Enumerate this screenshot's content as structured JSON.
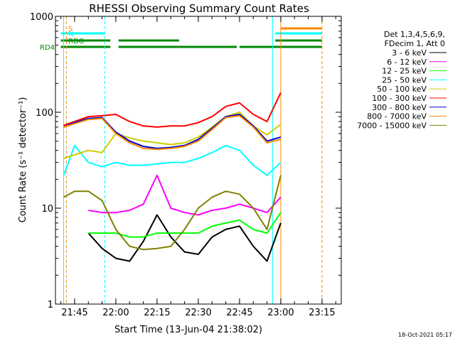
{
  "chart_data": {
    "type": "line",
    "title": "RHESSI Observing Summary Count Rates",
    "xlabel": "Start Time (13-Jun-04 21:38:02)",
    "ylabel": "Count Rate (s⁻¹ detector⁻¹)",
    "y_scale": "log",
    "ylim": [
      1,
      1000
    ],
    "xlim": [
      "21:38:02",
      "23:22:00"
    ],
    "x_ticks": [
      "21:45",
      "22:00",
      "22:15",
      "22:30",
      "22:45",
      "23:00",
      "23:15"
    ],
    "y_ticks": [
      "1",
      "10",
      "100",
      "1000"
    ],
    "legend_header": [
      "Det 1,3,4,5,6,9,",
      "FDecim 1, Att 0"
    ],
    "legend_position": "right",
    "series": [
      {
        "name": "3 - 6 keV",
        "color": "#000000",
        "x": [
          "21:50",
          "21:55",
          "22:00",
          "22:05",
          "22:10",
          "22:15",
          "22:20",
          "22:25",
          "22:30",
          "22:35",
          "22:40",
          "22:45",
          "22:50",
          "22:55",
          "23:00"
        ],
        "values": [
          5.5,
          3.8,
          3.0,
          2.8,
          4.5,
          8.5,
          5.0,
          3.5,
          3.3,
          5.0,
          6.0,
          6.5,
          4.0,
          2.8,
          7.0
        ]
      },
      {
        "name": "6 - 12 keV",
        "color": "#ff00ff",
        "x": [
          "21:50",
          "21:55",
          "22:00",
          "22:05",
          "22:10",
          "22:15",
          "22:20",
          "22:25",
          "22:30",
          "22:35",
          "22:40",
          "22:45",
          "22:50",
          "22:55",
          "23:00"
        ],
        "values": [
          9.5,
          9.0,
          9.0,
          9.5,
          11,
          22,
          10,
          9.0,
          8.5,
          9.5,
          10,
          11,
          10,
          9.0,
          13
        ]
      },
      {
        "name": "12 - 25 keV",
        "color": "#00ff00",
        "x": [
          "21:50",
          "21:55",
          "22:00",
          "22:05",
          "22:10",
          "22:15",
          "22:20",
          "22:25",
          "22:30",
          "22:35",
          "22:40",
          "22:45",
          "22:50",
          "22:55",
          "23:00"
        ],
        "values": [
          5.5,
          5.5,
          5.5,
          5.0,
          5.0,
          5.5,
          5.5,
          5.5,
          5.5,
          6.5,
          7.0,
          7.5,
          6.0,
          5.5,
          9.0
        ]
      },
      {
        "name": "25 - 50 keV",
        "color": "#00ffff",
        "x": [
          "21:41",
          "21:45",
          "21:50",
          "21:55",
          "22:00",
          "22:05",
          "22:10",
          "22:15",
          "22:20",
          "22:25",
          "22:30",
          "22:35",
          "22:40",
          "22:45",
          "22:50",
          "22:55",
          "23:00"
        ],
        "values": [
          22,
          45,
          30,
          27,
          30,
          28,
          28,
          29,
          30,
          30,
          33,
          38,
          45,
          40,
          28,
          22,
          30
        ]
      },
      {
        "name": "50 - 100 keV",
        "color": "#cccc00",
        "x": [
          "21:41",
          "21:45",
          "21:50",
          "21:55",
          "22:00",
          "22:05",
          "22:10",
          "22:15",
          "22:20",
          "22:25",
          "22:30",
          "22:35",
          "22:40",
          "22:45",
          "22:50",
          "22:55",
          "23:00"
        ],
        "values": [
          33,
          36,
          40,
          38,
          60,
          54,
          50,
          48,
          46,
          48,
          55,
          70,
          90,
          100,
          72,
          58,
          75
        ]
      },
      {
        "name": "100 - 300 keV",
        "color": "#ff0000",
        "x": [
          "21:41",
          "21:45",
          "21:50",
          "21:55",
          "22:00",
          "22:05",
          "22:10",
          "22:15",
          "22:20",
          "22:25",
          "22:30",
          "22:35",
          "22:40",
          "22:45",
          "22:50",
          "22:55",
          "23:00"
        ],
        "values": [
          73,
          80,
          90,
          92,
          95,
          80,
          72,
          70,
          72,
          72,
          78,
          90,
          115,
          125,
          95,
          80,
          160
        ]
      },
      {
        "name": "300 - 800 keV",
        "color": "#0000cc",
        "x": [
          "21:41",
          "21:45",
          "21:50",
          "21:55",
          "22:00",
          "22:05",
          "22:10",
          "22:15",
          "22:20",
          "22:25",
          "22:30",
          "22:35",
          "22:40",
          "22:45",
          "22:50",
          "22:55",
          "23:00"
        ],
        "values": [
          70,
          78,
          86,
          88,
          62,
          50,
          44,
          42,
          43,
          45,
          52,
          68,
          90,
          95,
          72,
          50,
          55
        ]
      },
      {
        "name": "800 - 7000 keV",
        "color": "#ff8800",
        "x": [
          "21:41",
          "21:45",
          "21:50",
          "21:55",
          "22:00",
          "22:05",
          "22:10",
          "22:15",
          "22:20",
          "22:25",
          "22:30",
          "22:35",
          "22:40",
          "22:45",
          "22:50",
          "22:55",
          "23:00"
        ],
        "values": [
          70,
          76,
          84,
          86,
          60,
          48,
          42,
          41,
          42,
          44,
          50,
          66,
          88,
          92,
          70,
          48,
          52
        ]
      },
      {
        "name": "7000 - 15000 keV",
        "color": "#808000",
        "x": [
          "21:41",
          "21:45",
          "21:50",
          "21:55",
          "22:00",
          "22:05",
          "22:10",
          "22:15",
          "22:20",
          "22:25",
          "22:30",
          "22:35",
          "22:40",
          "22:45",
          "22:50",
          "22:55",
          "23:00"
        ],
        "values": [
          13,
          15,
          15,
          12,
          6.0,
          4.0,
          3.7,
          3.8,
          4.0,
          6.0,
          10,
          13,
          15,
          14,
          10,
          6.0,
          22
        ]
      }
    ],
    "flags": [
      {
        "name": "S",
        "color": "#ff8800",
        "segments": [
          [
            "23:00",
            "23:15"
          ]
        ]
      },
      {
        "name": "N",
        "color": "#00ffff",
        "segments": [
          [
            "21:40",
            "21:56"
          ],
          [
            "22:58",
            "23:15"
          ]
        ]
      },
      {
        "name": "RDO",
        "color": "#008800",
        "segments": [
          [
            "21:40",
            "21:58"
          ],
          [
            "22:01",
            "22:23"
          ],
          [
            "22:58",
            "23:15"
          ]
        ]
      },
      {
        "name": "RD4",
        "color": "#008800",
        "segments": [
          [
            "21:40",
            "21:58"
          ],
          [
            "22:01",
            "22:23"
          ],
          [
            "22:23",
            "22:44"
          ],
          [
            "22:45",
            "23:15"
          ]
        ]
      }
    ],
    "grid": false
  },
  "timestamp": "18-Oct-2021 05:17"
}
